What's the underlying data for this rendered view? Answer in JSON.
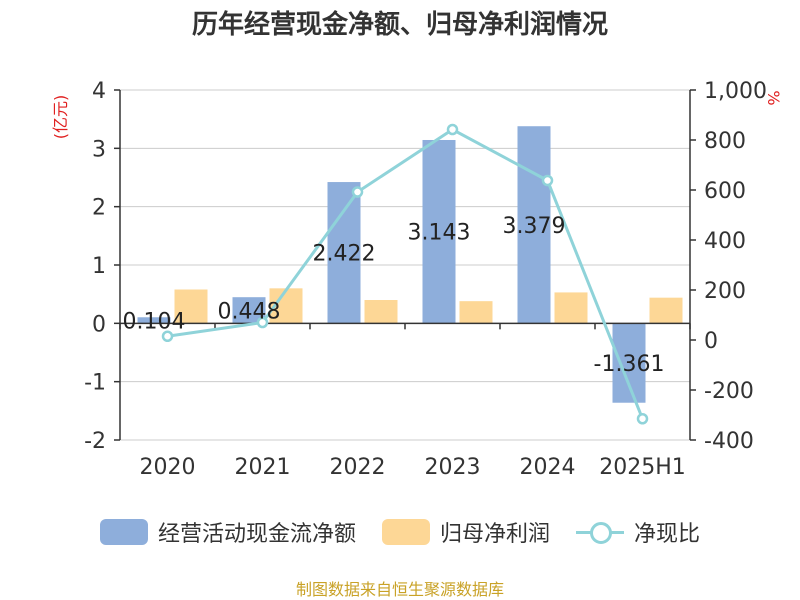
{
  "chart_data": {
    "type": "bar",
    "title": "历年经营现金净额、归母净利润情况",
    "left_axis_unit": "(亿元)",
    "right_axis_unit": "%",
    "categories": [
      "2020",
      "2021",
      "2022",
      "2023",
      "2024",
      "2025H1"
    ],
    "ylim_left": [
      -2,
      4
    ],
    "yticks_left": [
      -2,
      -1,
      0,
      1,
      2,
      3,
      4
    ],
    "ylim_right": [
      -400,
      1000
    ],
    "yticks_right": [
      -400,
      -200,
      0,
      200,
      400,
      600,
      800,
      1000
    ],
    "ytick_labels_right": [
      "-400",
      "-200",
      "0",
      "200",
      "400",
      "600",
      "800",
      "1,000"
    ],
    "grid": true,
    "legend_position": "bottom",
    "series": [
      {
        "name": "经营活动现金流净额",
        "type": "bar",
        "axis": "left",
        "color": "#8eaedb",
        "values": [
          0.104,
          0.448,
          2.422,
          3.143,
          3.379,
          -1.361
        ],
        "data_labels": [
          "0.104",
          "0.448",
          "2.422",
          "3.143",
          "3.379",
          "-1.361"
        ]
      },
      {
        "name": "归母净利润",
        "type": "bar",
        "axis": "left",
        "color": "#fdd796",
        "values": [
          0.58,
          0.6,
          0.4,
          0.38,
          0.53,
          0.44
        ]
      },
      {
        "name": "净现比",
        "type": "line",
        "axis": "right",
        "color": "#8fd3d9",
        "values": [
          15,
          70,
          592,
          842,
          638,
          -315
        ]
      }
    ]
  },
  "source": "制图数据来自恒生聚源数据库"
}
